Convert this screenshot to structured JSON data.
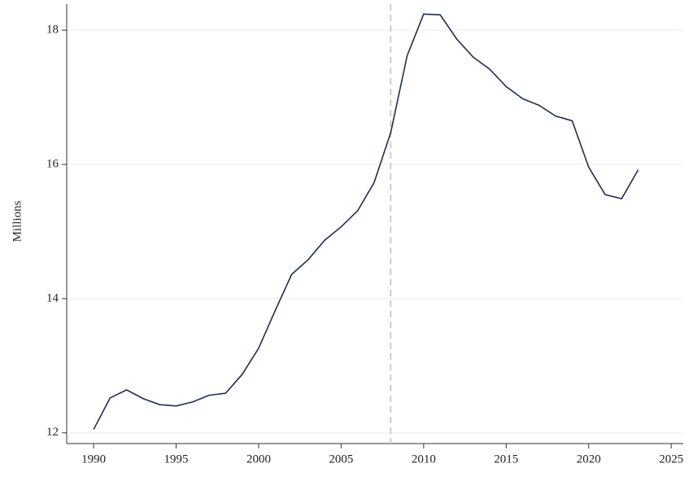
{
  "chart_data": {
    "type": "line",
    "y_label": "Millions",
    "x": [
      1990,
      1991,
      1992,
      1993,
      1994,
      1995,
      1996,
      1997,
      1998,
      1999,
      2000,
      2001,
      2002,
      2003,
      2004,
      2005,
      2006,
      2007,
      2008,
      2009,
      2010,
      2011,
      2012,
      2013,
      2014,
      2015,
      2016,
      2017,
      2018,
      2019,
      2020,
      2021,
      2022,
      2023
    ],
    "series": [
      {
        "color": "#1f2d4e",
        "values": [
          12.05,
          12.52,
          12.64,
          12.51,
          12.42,
          12.4,
          12.46,
          12.56,
          12.59,
          12.87,
          13.26,
          13.82,
          14.36,
          14.58,
          14.87,
          15.07,
          15.31,
          15.73,
          16.47,
          17.62,
          18.24,
          18.23,
          17.87,
          17.6,
          17.42,
          17.16,
          16.98,
          16.88,
          16.72,
          16.65,
          15.96,
          15.55,
          15.49,
          15.92
        ]
      }
    ],
    "xlim": [
      1988.37,
      2025.73
    ],
    "ylim": [
      11.84,
      18.39
    ],
    "xticks": [
      1990,
      1995,
      2000,
      2005,
      2010,
      2015,
      2020,
      2025
    ],
    "yticks": [
      12,
      14,
      16,
      18
    ],
    "grid": true,
    "reference_line_x": 2008,
    "reference_line_color": "#cccccc"
  }
}
